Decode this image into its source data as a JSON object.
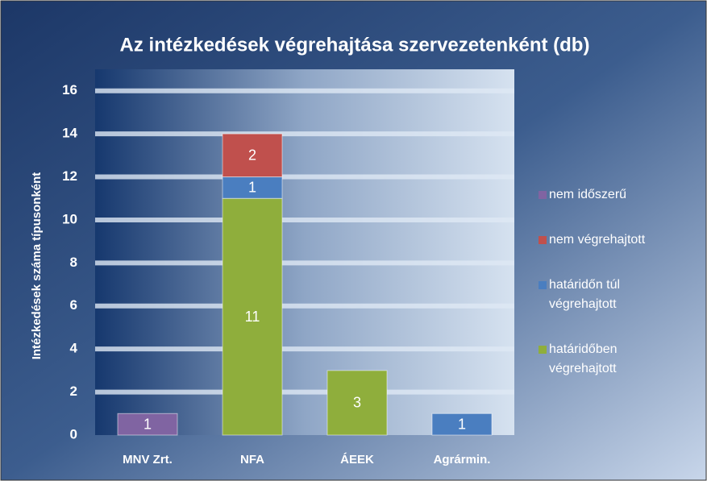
{
  "chart_data": {
    "type": "stacked_bar",
    "title": "Az intézkedések végrehajtása szervezetenként (db)",
    "ylabel": "Intézkedések száma típusonként",
    "categories": [
      "MNV Zrt.",
      "NFA",
      "ÁEEK",
      "Agrármin."
    ],
    "series": [
      {
        "name": "határidőben végrehajtott",
        "color": "#8fae3c",
        "values": [
          null,
          11,
          3,
          null
        ]
      },
      {
        "name": "határidőn túl végrehajtott",
        "color": "#4a7ec0",
        "values": [
          null,
          1,
          null,
          1
        ]
      },
      {
        "name": "nem végrehajtott",
        "color": "#c0504d",
        "values": [
          null,
          2,
          null,
          null
        ]
      },
      {
        "name": "nem időszerű",
        "color": "#8064a2",
        "values": [
          1,
          null,
          null,
          null
        ]
      }
    ],
    "ylim": [
      0,
      17
    ],
    "yticks": [
      0,
      2,
      4,
      6,
      8,
      10,
      12,
      14,
      16
    ],
    "grid": true,
    "legend": "right"
  }
}
